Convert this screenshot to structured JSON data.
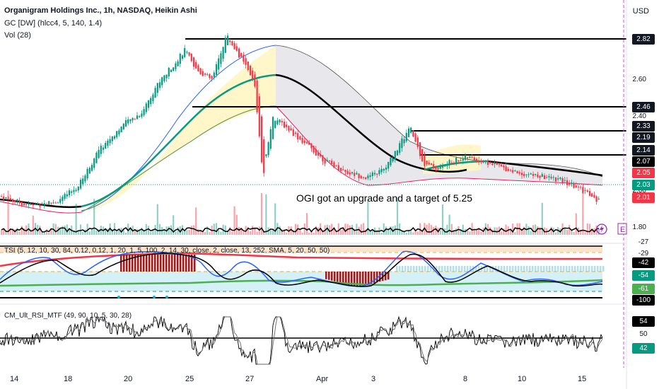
{
  "header": {
    "title": "Organigram Holdings Inc., 1h, NASDAQ, Heikin Ashi",
    "indicator_gc": "GC [DW] (hlcc4, 5, 140, 1.4)",
    "indicator_vol": "Vol (28)"
  },
  "currency": "USD",
  "annotation": "OGI got an upgrade and a target of 5.25",
  "tsi_label": "TSI (5, 12, 10, 30, 84, 0.12, 0.12, 1, 20, 1, 5, 100, 2, 14, 30, close, 2, close, 13, 252, SMA, 5, 20, 50, 50)",
  "rsi_label": "CM_Ult_RSI_MTF (49, 90, 10, 5, 30, 28)",
  "price_axis": {
    "ticks": [
      "2.80",
      "2.60",
      "2.40",
      "2.20",
      "2.00",
      "1.80"
    ],
    "badges": [
      {
        "text": "2.82",
        "bg": "#131722",
        "fg": "#ffffff"
      },
      {
        "text": "2.46",
        "bg": "#131722",
        "fg": "#ffffff"
      },
      {
        "text": "2.33",
        "bg": "#131722",
        "fg": "#ffffff"
      },
      {
        "text": "2.19",
        "bg": "#131722",
        "fg": "#ffffff"
      },
      {
        "text": "2.14",
        "bg": "#131722",
        "fg": "#ffffff"
      },
      {
        "text": "2.07",
        "bg": "#000000",
        "fg": "#ffffff"
      },
      {
        "text": "2.05",
        "bg": "#f23645",
        "fg": "#ffffff"
      },
      {
        "text": "2.03",
        "bg": "#089981",
        "fg": "#ffffff"
      },
      {
        "text": "2.01",
        "bg": "#f23645",
        "fg": "#ffffff"
      }
    ]
  },
  "tsi_axis": {
    "badges": [
      {
        "text": "-27",
        "bg": "#ffffff",
        "fg": "#131722"
      },
      {
        "text": "-29",
        "bg": "#ffffff",
        "fg": "#131722"
      },
      {
        "text": "-42",
        "bg": "#000000",
        "fg": "#ffffff"
      },
      {
        "text": "-54",
        "bg": "#089981",
        "fg": "#ffffff"
      },
      {
        "text": "-61",
        "bg": "#4caf50",
        "fg": "#ffffff"
      },
      {
        "text": "-100",
        "bg": "#000000",
        "fg": "#ffffff"
      }
    ]
  },
  "rsi_axis": {
    "badges": [
      {
        "text": "54",
        "bg": "#000000",
        "fg": "#ffffff"
      },
      {
        "text": "50",
        "bg": "#ffffff",
        "fg": "#131722"
      },
      {
        "text": "42",
        "bg": "#089981",
        "fg": "#ffffff"
      }
    ]
  },
  "time_axis": [
    "14",
    "18",
    "20",
    "25",
    "27",
    "Apr",
    "3",
    "8",
    "10",
    "15"
  ],
  "chart_data": {
    "type": "candlestick",
    "title": "Organigram Holdings Inc., 1h, NASDAQ, Heikin Ashi",
    "ylim": [
      1.75,
      2.95
    ],
    "x_labels": [
      "14",
      "18",
      "20",
      "25",
      "27",
      "Apr",
      "3",
      "8",
      "10",
      "15"
    ],
    "horizontal_levels": [
      2.82,
      2.46,
      2.33,
      2.19,
      2.14
    ],
    "last_price": 2.03,
    "guide_price_path": [
      [
        0,
        1.97
      ],
      [
        40,
        1.92
      ],
      [
        80,
        1.94
      ],
      [
        110,
        2.02
      ],
      [
        140,
        2.22
      ],
      [
        175,
        2.36
      ],
      [
        200,
        2.42
      ],
      [
        220,
        2.56
      ],
      [
        245,
        2.68
      ],
      [
        262,
        2.76
      ],
      [
        275,
        2.66
      ],
      [
        300,
        2.6
      ],
      [
        320,
        2.84
      ],
      [
        340,
        2.72
      ],
      [
        360,
        2.58
      ],
      [
        372,
        2.08
      ],
      [
        385,
        2.4
      ],
      [
        400,
        2.36
      ],
      [
        430,
        2.26
      ],
      [
        460,
        2.16
      ],
      [
        490,
        2.1
      ],
      [
        520,
        2.07
      ],
      [
        545,
        2.12
      ],
      [
        570,
        2.28
      ],
      [
        580,
        2.34
      ],
      [
        600,
        2.14
      ],
      [
        620,
        2.12
      ],
      [
        640,
        2.16
      ],
      [
        660,
        2.18
      ],
      [
        680,
        2.16
      ],
      [
        700,
        2.14
      ],
      [
        730,
        2.1
      ],
      [
        760,
        2.08
      ],
      [
        790,
        2.06
      ],
      [
        815,
        2.02
      ],
      [
        835,
        1.98
      ],
      [
        845,
        1.93
      ],
      [
        850,
        2.03
      ]
    ]
  }
}
